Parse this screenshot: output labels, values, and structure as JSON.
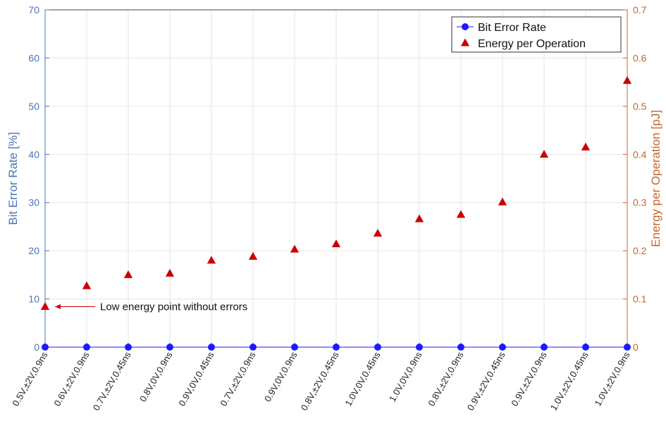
{
  "chart_data": {
    "type": "scatter",
    "categories": [
      "0.5V,±2V,0.9ns",
      "0.6V,±2V,0.9ns",
      "0.7V,±2V,0.45ns",
      "0.8V,0V,0.9ns",
      "0.9V,0V,0.45ns",
      "0.7V,±2V,0.9ns",
      "0.9V,0V,0.9ns",
      "0.8V,±2V,0.45ns",
      "1.0V,0V,0.45ns",
      "1.0V,0V,0.9ns",
      "0.8V,±2V,0.9ns",
      "0.9V,±2V,0.45ns",
      "0.9V,±2V,0.9ns",
      "1.0V,±2V,0.45ns",
      "1.0V,±2V,0.9ns"
    ],
    "series": [
      {
        "name": "Bit Error Rate",
        "axis": "left",
        "marker": "circle",
        "color": "#1a1aff",
        "values": [
          0,
          0,
          0,
          0,
          0,
          0,
          0,
          0,
          0,
          0,
          0,
          0,
          0,
          0,
          0
        ]
      },
      {
        "name": "Energy per Operation",
        "axis": "right",
        "marker": "triangle",
        "color": "#cc0000",
        "values": [
          0.084,
          0.127,
          0.15,
          0.153,
          0.18,
          0.188,
          0.203,
          0.214,
          0.236,
          0.266,
          0.275,
          0.301,
          0.4,
          0.415,
          0.553
        ]
      }
    ],
    "ylabel_left": "Bit Error Rate [%]",
    "ylabel_right": "Energy per Operation [pJ]",
    "ylim_left": [
      0,
      70
    ],
    "yticks_left": [
      0,
      10,
      20,
      30,
      40,
      50,
      60,
      70
    ],
    "ylim_right": [
      0,
      0.7
    ],
    "yticks_right": [
      0,
      0.1,
      0.2,
      0.3,
      0.4,
      0.5,
      0.6,
      0.7
    ],
    "grid": true,
    "legend_position": "top-right",
    "annotation": {
      "text": "Low energy point without errors",
      "target_index": 0
    },
    "colors": {
      "left_axis": "#4a74b8",
      "right_axis": "#c8642d",
      "grid": "#e6e6e6"
    }
  }
}
